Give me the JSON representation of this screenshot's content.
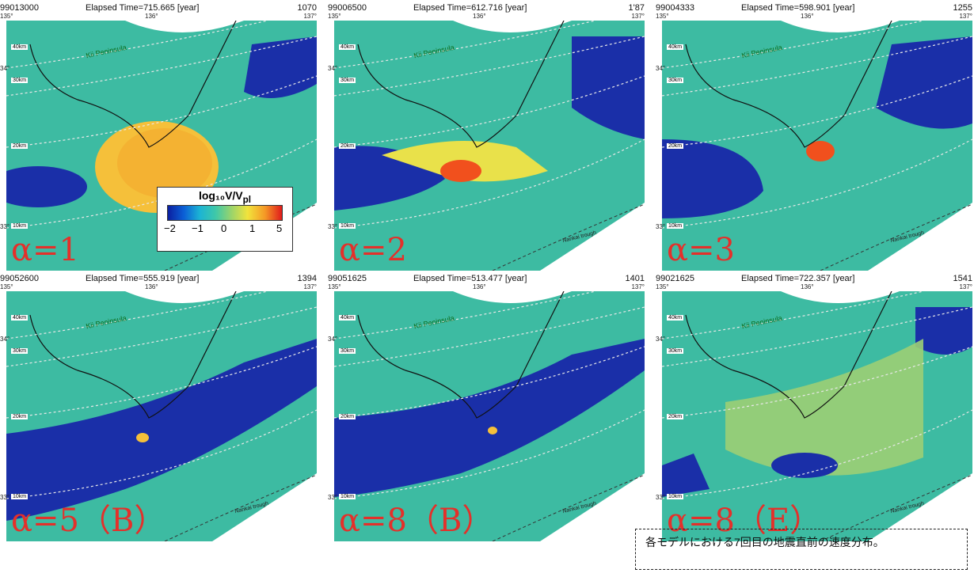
{
  "panels": [
    {
      "step": "99013000",
      "time": "Elapsed Time=715.665 [year]",
      "count": "1070",
      "alpha": "α=1"
    },
    {
      "step": "99006500",
      "time": "Elapsed Time=612.716 [year]",
      "count": "1'87",
      "alpha": "α=2"
    },
    {
      "step": "99004333",
      "time": "Elapsed Time=598.901 [year]",
      "count": "1255",
      "alpha": "α=3"
    },
    {
      "step": "99052600",
      "time": "Elapsed Time=555.919 [year]",
      "count": "1394",
      "alpha": "α=5（B）"
    },
    {
      "step": "99051625",
      "time": "Elapsed Time=513.477 [year]",
      "count": "1401",
      "alpha": "α=8（B）"
    },
    {
      "step": "99021625",
      "time": "Elapsed Time=722.357 [year]",
      "count": "1541",
      "alpha": "α=8（E）"
    }
  ],
  "axes": {
    "lon": [
      "135°",
      "136°",
      "137°"
    ],
    "lat": [
      "34°",
      "33°"
    ]
  },
  "depth_labels": [
    "40km",
    "30km",
    "20km",
    "10km"
  ],
  "map_labels": {
    "peninsula": "Kii Peninsula",
    "trough": "Nankai trough"
  },
  "colorbar": {
    "title": "log₁₀V/V",
    "title_sub": "pl",
    "ticks": [
      "−2",
      "−1",
      "0",
      "1",
      "5"
    ]
  },
  "caption": "各モデルにおける7回目の地震直前の速度分布。",
  "colors": {
    "background": "#3dbba2",
    "locked": "#1a2fa8",
    "slip": "#f5b332",
    "rupture_core": "#f1501d",
    "land": "#ffffff",
    "alpha_text": "#e4302a"
  }
}
